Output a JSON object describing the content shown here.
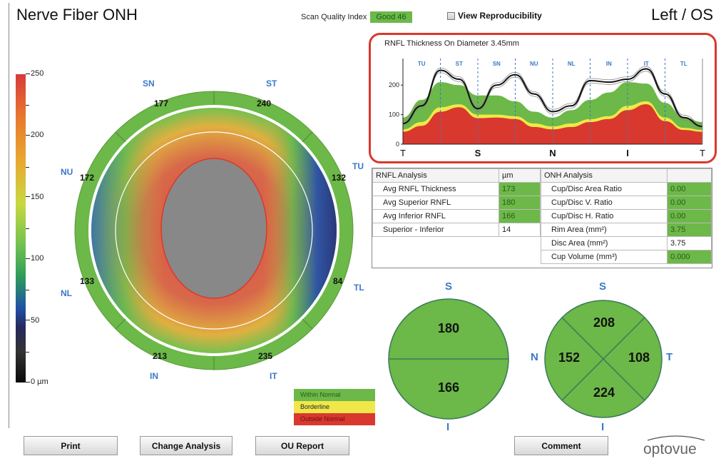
{
  "header": {
    "title": "Nerve Fiber ONH",
    "scan_quality_label": "Scan Quality Index",
    "scan_quality_value": "Good  46",
    "view_reproducibility_label": "View Reproducibility",
    "view_reproducibility_checked": false,
    "eye": "Left / OS"
  },
  "colorbar": {
    "ticks": [
      "250",
      "200",
      "150",
      "100",
      "50",
      "0 µm"
    ],
    "range_um": [
      0,
      250
    ]
  },
  "thickness_map": {
    "sector_labels": [
      "SN",
      "ST",
      "TU",
      "TL",
      "IT",
      "IN",
      "NL",
      "NU"
    ],
    "sector_values": {
      "SN": "177",
      "ST": "240",
      "TU": "132",
      "TL": "84",
      "IT": "235",
      "IN": "213",
      "NL": "133",
      "NU": "172"
    }
  },
  "legend": {
    "items": [
      {
        "label": "Within Normal",
        "color": "#6cb848"
      },
      {
        "label": "Borderline",
        "color": "#f0e84a"
      },
      {
        "label": "Outside Normal",
        "color": "#d9382e"
      }
    ]
  },
  "chart_data": {
    "type": "area",
    "title": "RNFL Thickness On Diameter 3.45mm",
    "xlabel": "",
    "ylabel": "",
    "ylim": [
      0,
      290
    ],
    "yticks": [
      "0",
      "100",
      "200"
    ],
    "x_axis_labels": [
      "T",
      "S",
      "N",
      "I",
      "T"
    ],
    "sector_labels": [
      "TU",
      "ST",
      "SN",
      "NU",
      "NL",
      "IN",
      "IT",
      "TL"
    ],
    "x": [
      0,
      6.25,
      12.5,
      18.75,
      25,
      31.25,
      37.5,
      43.75,
      50,
      56.25,
      62.5,
      68.75,
      75,
      81.25,
      87.5,
      93.75,
      100
    ],
    "series": [
      {
        "name": "Patient RNFL",
        "color": "#111111",
        "values": [
          70,
          130,
          250,
          220,
          120,
          200,
          235,
          170,
          110,
          130,
          215,
          210,
          220,
          255,
          170,
          90,
          60
        ]
      },
      {
        "name": "Normal upper (green top)",
        "color": "#6cb848",
        "values": [
          90,
          150,
          210,
          200,
          165,
          165,
          145,
          110,
          90,
          115,
          150,
          175,
          210,
          205,
          140,
          90,
          75
        ]
      },
      {
        "name": "Borderline upper (yellow top)",
        "color": "#f0e84a",
        "values": [
          50,
          75,
          125,
          135,
          100,
          100,
          95,
          70,
          60,
          70,
          85,
          95,
          130,
          145,
          90,
          55,
          48
        ]
      },
      {
        "name": "Outside normal upper (red top)",
        "color": "#d9382e",
        "values": [
          42,
          62,
          110,
          125,
          88,
          90,
          85,
          58,
          50,
          58,
          75,
          85,
          115,
          135,
          78,
          48,
          42
        ]
      }
    ]
  },
  "rnfl_analysis": {
    "header": "RNFL Analysis",
    "unit": "µm",
    "rows": [
      {
        "label": "Avg RNFL Thickness",
        "value": "173",
        "status": "normal"
      },
      {
        "label": "Avg Superior RNFL",
        "value": "180",
        "status": "normal"
      },
      {
        "label": "Avg Inferior RNFL",
        "value": "166",
        "status": "normal"
      },
      {
        "label": "Superior - Inferior",
        "value": "14",
        "status": "none"
      }
    ]
  },
  "onh_analysis": {
    "header": "ONH Analysis",
    "rows": [
      {
        "label": "Cup/Disc Area Ratio",
        "value": "0.00",
        "status": "normal"
      },
      {
        "label": "Cup/Disc V. Ratio",
        "value": "0.00",
        "status": "normal"
      },
      {
        "label": "Cup/Disc H. Ratio",
        "value": "0.00",
        "status": "normal"
      },
      {
        "label": "Rim Area (mm²)",
        "value": "3.75",
        "status": "normal"
      },
      {
        "label": "Disc Area (mm²)",
        "value": "3.75",
        "status": "none"
      },
      {
        "label": "Cup Volume (mm³)",
        "value": "0.000",
        "status": "normal"
      }
    ]
  },
  "hemi_pie": {
    "top_label": "S",
    "bottom_label": "I",
    "superior": "180",
    "inferior": "166"
  },
  "quadrant_pie": {
    "top_label": "S",
    "bottom_label": "I",
    "left_label": "N",
    "right_label": "T",
    "superior": "208",
    "inferior": "224",
    "nasal": "152",
    "temporal": "108"
  },
  "buttons": {
    "print": "Print",
    "change_analysis": "Change Analysis",
    "ou_report": "OU Report",
    "comment": "Comment"
  },
  "logo_text": "optovue"
}
